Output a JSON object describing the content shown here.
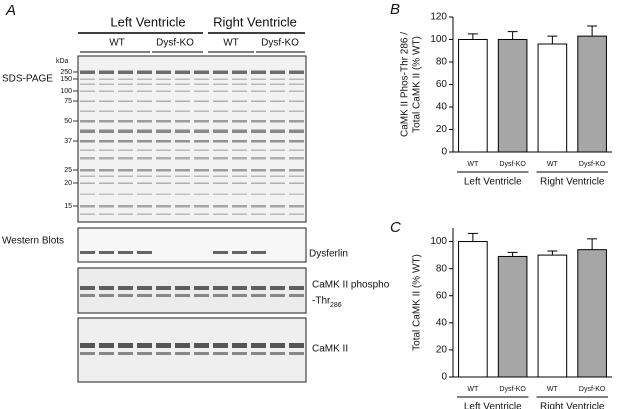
{
  "panel_a": {
    "label": "A",
    "groups": [
      "Left Ventricle",
      "Right Ventricle"
    ],
    "subgroups": [
      "WT",
      "Dysf-KO",
      "WT",
      "Dysf-KO"
    ],
    "kda_label": "kDa",
    "markers": [
      250,
      150,
      100,
      75,
      50,
      37,
      25,
      20,
      15
    ],
    "sds_label": "SDS-PAGE",
    "western_label": "Western Blots",
    "blots": {
      "dysferlin": "Dysferlin",
      "phospho_line1": "CaMK II phospho",
      "phospho_line2": "-Thr",
      "phospho_sub": "286",
      "total": "CaMK II"
    }
  },
  "chart_data": [
    {
      "type": "bar",
      "panel_label": "B",
      "ylabel": [
        "CaMK II Phos-Thr 286 /",
        "Total CaMK II (% WT)"
      ],
      "categories": [
        "WT",
        "Dysf-KO",
        "WT",
        "Dysf-KO"
      ],
      "groups": [
        "Left Ventricle",
        "Right Ventricle"
      ],
      "values": [
        100,
        100,
        96,
        103
      ],
      "errors": [
        5,
        7,
        7,
        9
      ],
      "colors": [
        "#ffffff",
        "#a6a6a6",
        "#ffffff",
        "#a6a6a6"
      ],
      "ylim": [
        0,
        120
      ],
      "yticks": [
        0,
        20,
        40,
        60,
        80,
        100,
        120
      ]
    },
    {
      "type": "bar",
      "panel_label": "C",
      "ylabel": [
        "Total CaMK II (% WT)"
      ],
      "categories": [
        "WT",
        "Dysf-KO",
        "WT",
        "Dysf-KO"
      ],
      "groups": [
        "Left Ventricle",
        "Right Ventricle"
      ],
      "values": [
        100,
        89,
        90,
        94
      ],
      "errors": [
        6,
        3,
        3,
        8
      ],
      "colors": [
        "#ffffff",
        "#a6a6a6",
        "#ffffff",
        "#a6a6a6"
      ],
      "ylim": [
        0,
        110
      ],
      "yticks": [
        0,
        20,
        40,
        60,
        80,
        100
      ]
    }
  ]
}
